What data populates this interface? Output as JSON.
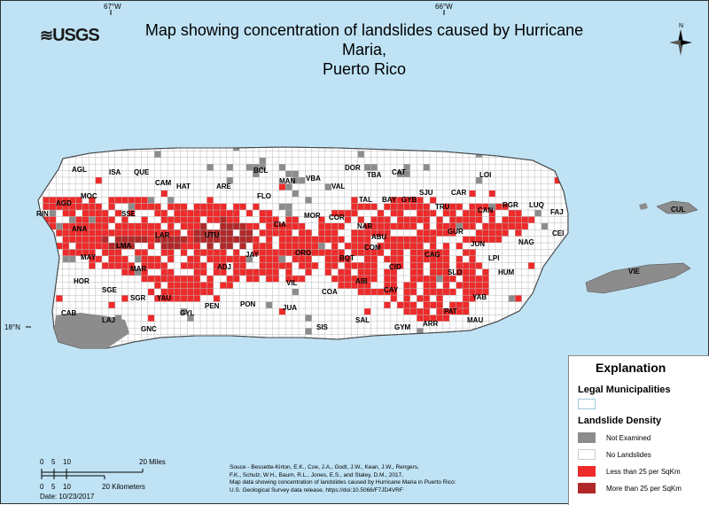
{
  "map": {
    "title_line1": "Map showing concentration of landslides caused by Hurricane Maria,",
    "title_line2": "Puerto Rico",
    "logo": "USGS",
    "longitude_labels": [
      "67°W",
      "66°W"
    ],
    "latitude_label": "18°N",
    "north_label": "N",
    "colors": {
      "water": "#bfe3f5",
      "land": "#ffffff",
      "grid": "#b8b8b8",
      "not_examined": "#8c8c8c",
      "low_density": "#ee2a2a",
      "high_density": "#b02828"
    }
  },
  "municipalities": [
    {
      "code": "AGL"
    },
    {
      "code": "ISA"
    },
    {
      "code": "QUE"
    },
    {
      "code": "CAM"
    },
    {
      "code": "HAT"
    },
    {
      "code": "ARE"
    },
    {
      "code": "BCL"
    },
    {
      "code": "MAN"
    },
    {
      "code": "FLO"
    },
    {
      "code": "VBA"
    },
    {
      "code": "VAL"
    },
    {
      "code": "DOR"
    },
    {
      "code": "TBA"
    },
    {
      "code": "CAT"
    },
    {
      "code": "LOI"
    },
    {
      "code": "SJU"
    },
    {
      "code": "GYB"
    },
    {
      "code": "BAY"
    },
    {
      "code": "TAL"
    },
    {
      "code": "CAR"
    },
    {
      "code": "AGD"
    },
    {
      "code": "MOC"
    },
    {
      "code": "RIN"
    },
    {
      "code": "SSE"
    },
    {
      "code": "ANA"
    },
    {
      "code": "LAR"
    },
    {
      "code": "UTU"
    },
    {
      "code": "CIA"
    },
    {
      "code": "MOR"
    },
    {
      "code": "COR"
    },
    {
      "code": "NAR"
    },
    {
      "code": "TRU"
    },
    {
      "code": "CAN"
    },
    {
      "code": "RGR"
    },
    {
      "code": "LUQ"
    },
    {
      "code": "FAJ"
    },
    {
      "code": "CUL"
    },
    {
      "code": "LMA"
    },
    {
      "code": "MAY"
    },
    {
      "code": "ABU"
    },
    {
      "code": "GUR"
    },
    {
      "code": "JUN"
    },
    {
      "code": "CEI"
    },
    {
      "code": "NAG"
    },
    {
      "code": "COM"
    },
    {
      "code": "JAY"
    },
    {
      "code": "ORO"
    },
    {
      "code": "BQT"
    },
    {
      "code": "LPI"
    },
    {
      "code": "CAG"
    },
    {
      "code": "ADJ"
    },
    {
      "code": "MAR"
    },
    {
      "code": "HOR"
    },
    {
      "code": "CID"
    },
    {
      "code": "HUM"
    },
    {
      "code": "SLO"
    },
    {
      "code": "VIE"
    },
    {
      "code": "SGE"
    },
    {
      "code": "SGR"
    },
    {
      "code": "YAU"
    },
    {
      "code": "VIL"
    },
    {
      "code": "AIB"
    },
    {
      "code": "COA"
    },
    {
      "code": "CAY"
    },
    {
      "code": "PEN"
    },
    {
      "code": "PON"
    },
    {
      "code": "YAB"
    },
    {
      "code": "GYL"
    },
    {
      "code": "CAB"
    },
    {
      "code": "JUA"
    },
    {
      "code": "PAT"
    },
    {
      "code": "MAU"
    },
    {
      "code": "LAJ"
    },
    {
      "code": "SAL"
    },
    {
      "code": "ARR"
    },
    {
      "code": "GNC"
    },
    {
      "code": "SIS"
    },
    {
      "code": "GYM"
    }
  ],
  "legend": {
    "title": "Explanation",
    "municipalities_header": "Legal Municipalities",
    "density_header": "Landslide Density",
    "items": [
      {
        "label": "Not Examined",
        "color": "#8c8c8c"
      },
      {
        "label": "No Landslides",
        "color": "#ffffff"
      },
      {
        "label": "Less than 25 per SqKm",
        "color": "#ee2a2a"
      },
      {
        "label": "More than 25 per SqKm",
        "color": "#b02828"
      }
    ]
  },
  "scale": {
    "miles_ticks": [
      "0",
      "5",
      "10",
      "20 Miles"
    ],
    "km_ticks": [
      "0",
      "5",
      "10",
      "20 Kilometers"
    ],
    "date": "Date: 10/23/2017"
  },
  "source": {
    "line1": "Souce - Bessette-Kirton, E.K., Coe, J.A., Godt, J.W., Kean, J.W., Rengers,",
    "line2": "F.K., Schulz, W.H., Baum, R.L., Jones, E.S., and Staley, D.M., 2017,",
    "line3": "Map data showing concentration of landslides caused by Hurricane Maria in Puerto Rico:",
    "line4": "U.S. Geological Survey data release, https://doi:10.5066/F7JD4VRF"
  }
}
